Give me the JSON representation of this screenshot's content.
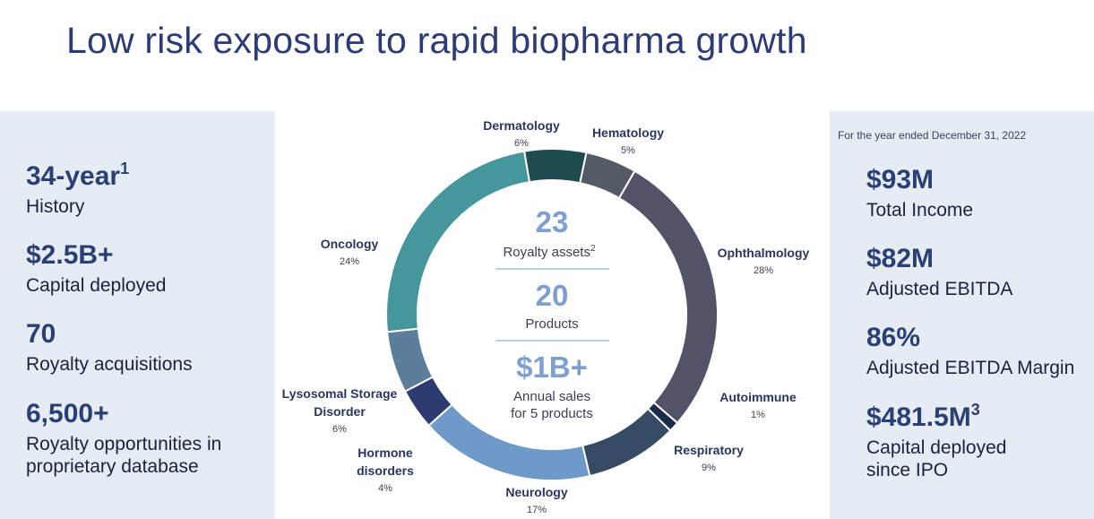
{
  "title": "Low risk exposure to rapid biopharma growth",
  "left_stats": [
    {
      "value": "34-year",
      "sup": "1",
      "caption_lines": [
        "History"
      ]
    },
    {
      "value": "$2.5B+",
      "sup": "",
      "caption_lines": [
        "Capital deployed"
      ]
    },
    {
      "value": "70",
      "sup": "",
      "caption_lines": [
        "Royalty acquisitions"
      ]
    },
    {
      "value": "6,500+",
      "sup": "",
      "caption_lines": [
        "Royalty opportunities in",
        "proprietary database"
      ]
    }
  ],
  "right_note": "For the year ended December 31, 2022",
  "right_stats": [
    {
      "value": "$93M",
      "sup": "",
      "caption_lines": [
        "Total Income"
      ]
    },
    {
      "value": "$82M",
      "sup": "",
      "caption_lines": [
        "Adjusted EBITDA"
      ]
    },
    {
      "value": "86%",
      "sup": "",
      "caption_lines": [
        "Adjusted EBITDA Margin"
      ]
    },
    {
      "value": "$481.5M",
      "sup": "3",
      "caption_lines": [
        "Capital deployed",
        "since IPO"
      ]
    }
  ],
  "center": {
    "metric1": {
      "value": "23",
      "label": "Royalty assets",
      "sup": "2"
    },
    "metric2": {
      "value": "20",
      "label": "Products"
    },
    "metric3": {
      "value": "$1B+",
      "label_lines": [
        "Annual sales",
        "for 5 products"
      ]
    }
  },
  "colors": {
    "title": "#2c3b78",
    "panel_bg": "#e6ecf4",
    "center_number": "#7f9fd0"
  },
  "chart_data": {
    "type": "pie",
    "variant": "donut",
    "unit": "%",
    "slices": [
      {
        "label": "Hematology",
        "value": 5,
        "color": "#545a66"
      },
      {
        "label": "Ophthalmology",
        "value": 28,
        "color": "#535368"
      },
      {
        "label": "Autoimmune",
        "value": 1,
        "color": "#1d2b4a"
      },
      {
        "label": "Respiratory",
        "value": 9,
        "color": "#354b63"
      },
      {
        "label": "Neurology",
        "value": 17,
        "color": "#6e99c8"
      },
      {
        "label": "Hormone disorders",
        "value": 4,
        "color": "#2e3b72"
      },
      {
        "label": "Lysosomal Storage Disorder",
        "value": 6,
        "color": "#5d7e9b"
      },
      {
        "label": "Oncology",
        "value": 24,
        "color": "#46979c"
      },
      {
        "label": "Dermatology",
        "value": 6,
        "color": "#1f4a4f"
      }
    ]
  }
}
